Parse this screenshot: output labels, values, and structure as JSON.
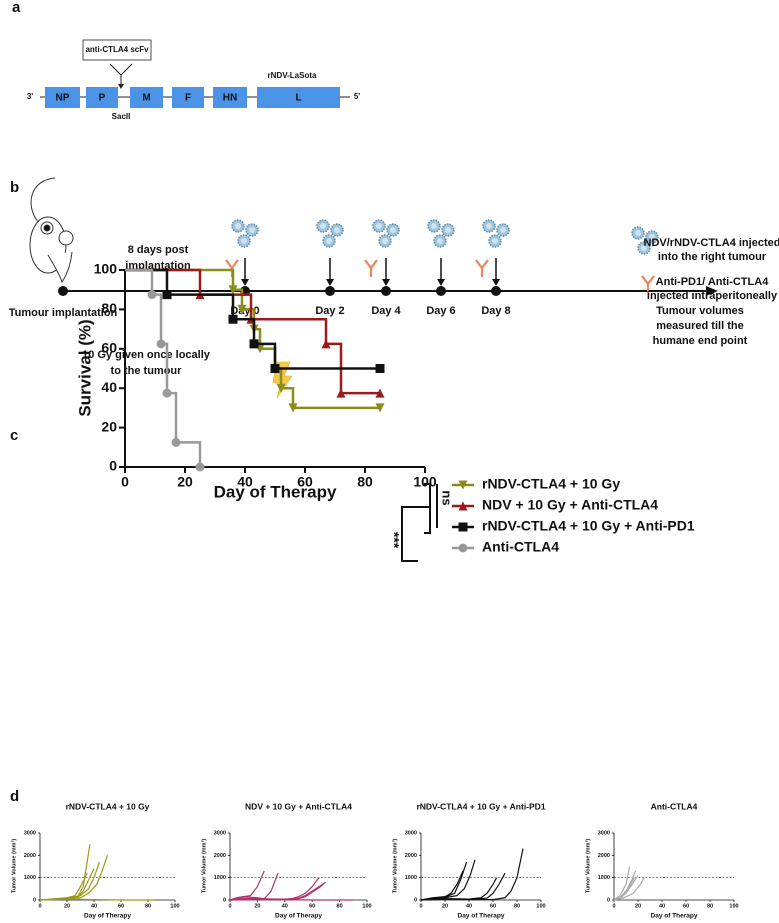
{
  "panels": [
    "a",
    "b",
    "c",
    "d"
  ],
  "genome": {
    "insert": "anti-CTLA4 scFv",
    "site": "SacII",
    "name": "rNDV-LaSota",
    "end3": "3'",
    "end5": "5'",
    "genes": [
      "NP",
      "P",
      "M",
      "F",
      "HN",
      "L"
    ]
  },
  "timeline": {
    "start": "Tumour implantation",
    "interval": [
      "8 days post",
      "implantation"
    ],
    "days": [
      "Day 0",
      "Day 2",
      "Day 4",
      "Day 6",
      "Day 8"
    ],
    "end": [
      "Tumour volumes",
      "measured till the",
      "humane end point"
    ],
    "radiation": [
      "10 Gy given once locally",
      "to the tumour"
    ],
    "virus_legend": [
      "NDV/rNDV-CTLA4 injected",
      "into the right tumour"
    ],
    "antibody_legend": [
      "Anti-PD1/ Anti-CTLA4",
      "injected intraperitoneally"
    ]
  },
  "chart_data": [
    {
      "type": "step",
      "xlabel": "Day of Therapy",
      "ylabel": "Survival (%)",
      "xlim": [
        0,
        100
      ],
      "ylim": [
        0,
        100
      ],
      "xticks": [
        0,
        20,
        40,
        60,
        80,
        100
      ],
      "yticks": [
        0,
        20,
        40,
        60,
        80,
        100
      ],
      "annotations": [
        "ns",
        "***"
      ],
      "series": [
        {
          "name": "rNDV-CTLA4 + 10 Gy",
          "color": "#8c8c1c",
          "marker": "triangle-down",
          "x": [
            0,
            36,
            39,
            43,
            45,
            50,
            52,
            56,
            85
          ],
          "values": [
            100,
            90,
            80,
            70,
            60,
            50,
            40,
            30,
            30
          ]
        },
        {
          "name": "NDV + 10 Gy + Anti-CTLA4",
          "color": "#9b1b1b",
          "marker": "triangle-up",
          "x": [
            0,
            25,
            42,
            67,
            72,
            85
          ],
          "values": [
            100,
            87.5,
            75,
            62.5,
            37.5,
            37.5
          ]
        },
        {
          "name": "rNDV-CTLA4 + 10 Gy + Anti-PD1",
          "color": "#111111",
          "marker": "square",
          "x": [
            0,
            14,
            36,
            43,
            50,
            85
          ],
          "values": [
            100,
            87.5,
            75,
            62.5,
            50,
            50
          ]
        },
        {
          "name": "Anti-CTLA4",
          "color": "#999999",
          "marker": "circle",
          "x": [
            0,
            9,
            12,
            14,
            17,
            25
          ],
          "values": [
            100,
            87.5,
            62.5,
            37.5,
            12.5,
            0
          ]
        }
      ]
    },
    {
      "type": "line",
      "title": "rNDV-CTLA4 + 10 Gy",
      "xlabel": "Day of Therapy",
      "ylabel": "Tumor Volume (mm³)",
      "color": "#9a9a1a",
      "xlim": [
        0,
        100
      ],
      "ylim": [
        0,
        3000
      ],
      "xticks": [
        0,
        20,
        40,
        60,
        80,
        100
      ],
      "yticks": [
        0,
        1000,
        2000,
        3000
      ],
      "threshold": 1000,
      "series": [
        {
          "x": [
            0,
            10,
            20,
            28,
            32,
            37
          ],
          "values": [
            0,
            30,
            60,
            150,
            600,
            2500
          ]
        },
        {
          "x": [
            0,
            10,
            20,
            30,
            36,
            42,
            46,
            50
          ],
          "values": [
            0,
            20,
            50,
            100,
            300,
            700,
            1300,
            2000
          ]
        },
        {
          "x": [
            0,
            10,
            20,
            30,
            36,
            40,
            44
          ],
          "values": [
            0,
            40,
            80,
            200,
            500,
            1000,
            1700
          ]
        },
        {
          "x": [
            0,
            10,
            20,
            28,
            32,
            36,
            40
          ],
          "values": [
            0,
            30,
            60,
            120,
            400,
            900,
            1400
          ]
        },
        {
          "x": [
            0,
            10,
            20,
            26,
            30,
            35
          ],
          "values": [
            0,
            50,
            100,
            200,
            600,
            1200
          ]
        },
        {
          "x": [
            0,
            10,
            20,
            30,
            40,
            50,
            60,
            70,
            85
          ],
          "values": [
            0,
            20,
            40,
            30,
            20,
            10,
            0,
            0,
            0
          ]
        }
      ]
    },
    {
      "type": "line",
      "title": "NDV + 10 Gy + Anti-CTLA4",
      "xlabel": "Day of Therapy",
      "ylabel": "Tumor Volume (mm³)",
      "color": "#b3306a",
      "xlim": [
        0,
        100
      ],
      "ylim": [
        0,
        3000
      ],
      "xticks": [
        0,
        20,
        40,
        60,
        80,
        100
      ],
      "yticks": [
        0,
        1000,
        2000,
        3000
      ],
      "threshold": 1000,
      "series": [
        {
          "x": [
            0,
            5,
            10,
            15,
            20,
            25
          ],
          "values": [
            0,
            100,
            150,
            200,
            600,
            1300
          ]
        },
        {
          "x": [
            0,
            10,
            20,
            25,
            30,
            35
          ],
          "values": [
            0,
            150,
            100,
            50,
            400,
            1200
          ]
        },
        {
          "x": [
            0,
            10,
            20,
            30,
            40,
            45,
            50,
            55,
            60,
            65
          ],
          "values": [
            0,
            80,
            60,
            40,
            30,
            60,
            150,
            300,
            600,
            1000
          ]
        },
        {
          "x": [
            0,
            20,
            40,
            50,
            55,
            60,
            65,
            70
          ],
          "values": [
            0,
            50,
            40,
            80,
            200,
            400,
            600,
            800
          ]
        },
        {
          "x": [
            0,
            20,
            40,
            50,
            55,
            60,
            65,
            68
          ],
          "values": [
            0,
            30,
            20,
            60,
            150,
            350,
            550,
            700
          ]
        },
        {
          "x": [
            0,
            20,
            40,
            60,
            80,
            90
          ],
          "values": [
            0,
            20,
            10,
            0,
            0,
            0
          ]
        }
      ]
    },
    {
      "type": "line",
      "title": "rNDV-CTLA4 + 10 Gy + Anti-PD1",
      "xlabel": "Day of Therapy",
      "ylabel": "Tumor Volume (mm³)",
      "color": "#111111",
      "xlim": [
        0,
        100
      ],
      "ylim": [
        0,
        3000
      ],
      "xticks": [
        0,
        20,
        40,
        60,
        80,
        100
      ],
      "yticks": [
        0,
        1000,
        2000,
        3000
      ],
      "threshold": 1000,
      "series": [
        {
          "x": [
            0,
            10,
            20,
            25,
            30,
            35
          ],
          "values": [
            0,
            100,
            150,
            300,
            700,
            1300
          ]
        },
        {
          "x": [
            0,
            10,
            20,
            28,
            33,
            38
          ],
          "values": [
            0,
            80,
            120,
            300,
            900,
            1700
          ]
        },
        {
          "x": [
            0,
            10,
            20,
            30,
            36,
            41,
            45
          ],
          "values": [
            0,
            50,
            100,
            200,
            500,
            1100,
            1800
          ]
        },
        {
          "x": [
            0,
            20,
            40,
            50,
            55,
            60,
            63
          ],
          "values": [
            0,
            60,
            40,
            100,
            300,
            700,
            1000
          ]
        },
        {
          "x": [
            0,
            20,
            40,
            55,
            60,
            65,
            70
          ],
          "values": [
            0,
            40,
            30,
            80,
            300,
            700,
            1200
          ]
        },
        {
          "x": [
            0,
            20,
            40,
            60,
            70,
            75,
            80,
            85
          ],
          "values": [
            0,
            30,
            20,
            20,
            100,
            400,
            1000,
            2300
          ]
        }
      ]
    },
    {
      "type": "line",
      "title": "Anti-CTLA4",
      "xlabel": "Day of Therapy",
      "ylabel": "Tumor Volume (mm³)",
      "color": "#aaaaaa",
      "xlim": [
        0,
        100
      ],
      "ylim": [
        0,
        3000
      ],
      "xticks": [
        0,
        20,
        40,
        60,
        80,
        100
      ],
      "yticks": [
        0,
        1000,
        2000,
        3000
      ],
      "threshold": 1000,
      "series": [
        {
          "x": [
            0,
            5,
            10,
            13
          ],
          "values": [
            0,
            200,
            700,
            1500
          ]
        },
        {
          "x": [
            0,
            5,
            10,
            15,
            18
          ],
          "values": [
            0,
            100,
            400,
            900,
            1300
          ]
        },
        {
          "x": [
            0,
            5,
            10,
            15,
            20
          ],
          "values": [
            0,
            80,
            300,
            700,
            1100
          ]
        },
        {
          "x": [
            0,
            6,
            12,
            17
          ],
          "values": [
            0,
            150,
            500,
            1000
          ]
        },
        {
          "x": [
            0,
            8,
            16,
            22,
            25
          ],
          "values": [
            0,
            100,
            300,
            700,
            1000
          ]
        }
      ]
    }
  ]
}
